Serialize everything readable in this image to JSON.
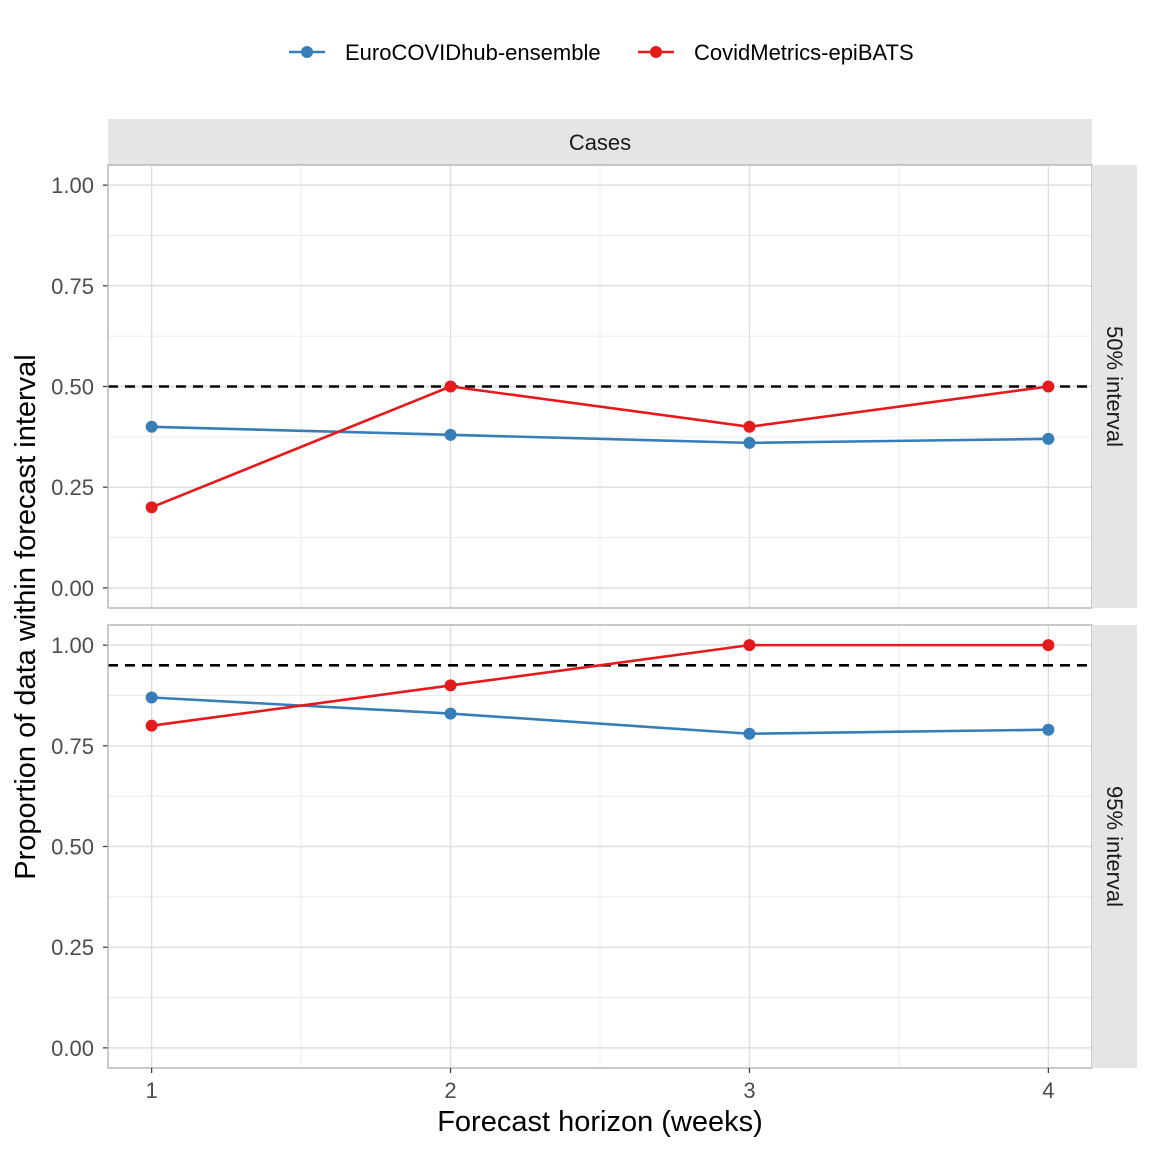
{
  "chart_data": {
    "type": "line",
    "xlabel": "Forecast horizon (weeks)",
    "ylabel": "Proportion of data within forecast interval",
    "column_strip": "Cases",
    "x": [
      1,
      2,
      3,
      4
    ],
    "x_ticks": [
      "1",
      "2",
      "3",
      "4"
    ],
    "y_ticks": [
      "0.00",
      "0.25",
      "0.50",
      "0.75",
      "1.00"
    ],
    "legend_position": "top",
    "legend": [
      {
        "name": "EuroCOVIDhub-ensemble",
        "color": "#377eb8"
      },
      {
        "name": "CovidMetrics-epiBATS",
        "color": "#e41a1c"
      }
    ],
    "panels": [
      {
        "strip": "50% interval",
        "reference_line": 0.5,
        "series": [
          {
            "name": "EuroCOVIDhub-ensemble",
            "color": "#377eb8",
            "values": [
              0.4,
              0.38,
              0.36,
              0.37
            ]
          },
          {
            "name": "CovidMetrics-epiBATS",
            "color": "#e41a1c",
            "values": [
              0.2,
              0.5,
              0.4,
              0.5
            ]
          }
        ]
      },
      {
        "strip": "95% interval",
        "reference_line": 0.95,
        "series": [
          {
            "name": "EuroCOVIDhub-ensemble",
            "color": "#377eb8",
            "values": [
              0.87,
              0.83,
              0.78,
              0.79
            ]
          },
          {
            "name": "CovidMetrics-epiBATS",
            "color": "#e41a1c",
            "values": [
              0.8,
              0.9,
              1.0,
              1.0
            ]
          }
        ]
      }
    ]
  }
}
